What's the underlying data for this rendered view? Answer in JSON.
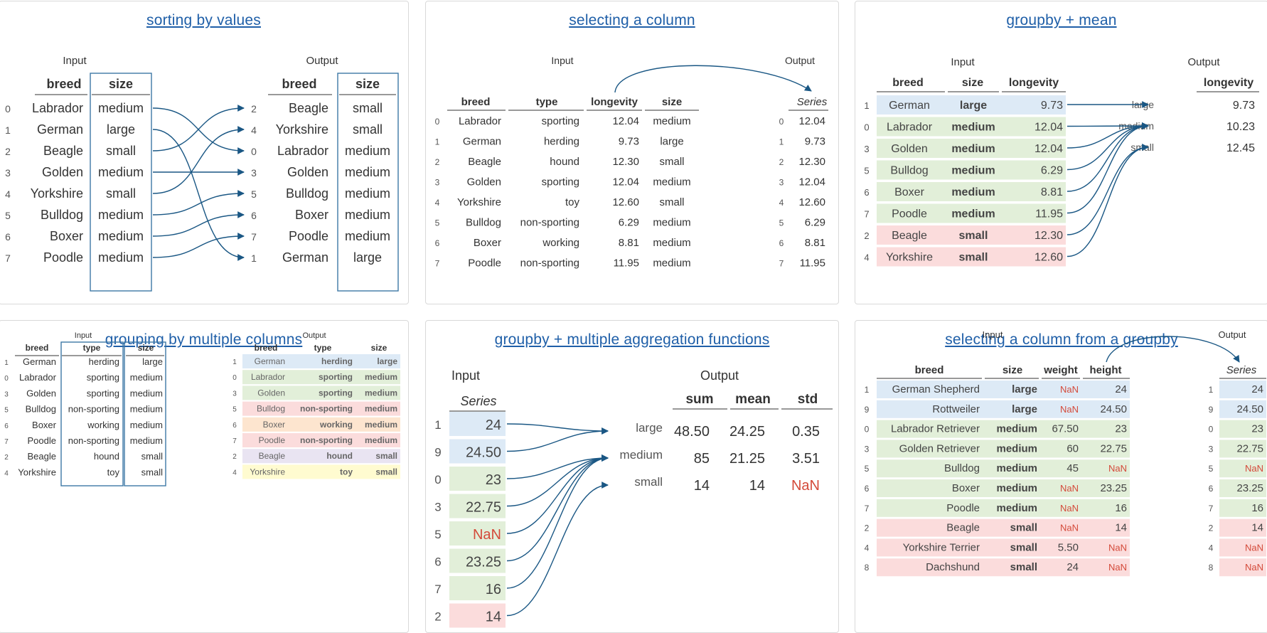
{
  "colors": {
    "arrow": "#1a5784",
    "link": "#1f5fa8",
    "blue": "#ddeaf6",
    "green": "#e2efd9",
    "red": "#fbdcdc",
    "orange": "#fde5cf",
    "purple": "#e9e4f2",
    "yellow": "#fffbd0",
    "nan": "#d44a3a",
    "box": "#3d78a6"
  },
  "panels": {
    "sort": {
      "title": "sorting by values",
      "input_label": "Input",
      "output_label": "Output",
      "columns": [
        "breed",
        "size"
      ],
      "input_rows": [
        {
          "idx": "0",
          "breed": "Labrador",
          "size": "medium"
        },
        {
          "idx": "1",
          "breed": "German",
          "size": "large"
        },
        {
          "idx": "2",
          "breed": "Beagle",
          "size": "small"
        },
        {
          "idx": "3",
          "breed": "Golden",
          "size": "medium"
        },
        {
          "idx": "4",
          "breed": "Yorkshire",
          "size": "small"
        },
        {
          "idx": "5",
          "breed": "Bulldog",
          "size": "medium"
        },
        {
          "idx": "6",
          "breed": "Boxer",
          "size": "medium"
        },
        {
          "idx": "7",
          "breed": "Poodle",
          "size": "medium"
        }
      ],
      "output_rows": [
        {
          "idx": "2",
          "breed": "Beagle",
          "size": "small"
        },
        {
          "idx": "4",
          "breed": "Yorkshire",
          "size": "small"
        },
        {
          "idx": "0",
          "breed": "Labrador",
          "size": "medium"
        },
        {
          "idx": "3",
          "breed": "Golden",
          "size": "medium"
        },
        {
          "idx": "5",
          "breed": "Bulldog",
          "size": "medium"
        },
        {
          "idx": "6",
          "breed": "Boxer",
          "size": "medium"
        },
        {
          "idx": "7",
          "breed": "Poodle",
          "size": "medium"
        },
        {
          "idx": "1",
          "breed": "German",
          "size": "large"
        }
      ]
    },
    "select": {
      "title": "selecting a column",
      "input_label": "Input",
      "output_label": "Output",
      "columns": [
        "breed",
        "type",
        "longevity",
        "size"
      ],
      "series_label": "Series",
      "rows": [
        {
          "idx": "0",
          "breed": "Labrador",
          "type": "sporting",
          "longevity": "12.04",
          "size": "medium"
        },
        {
          "idx": "1",
          "breed": "German",
          "type": "herding",
          "longevity": "9.73",
          "size": "large"
        },
        {
          "idx": "2",
          "breed": "Beagle",
          "type": "hound",
          "longevity": "12.30",
          "size": "small"
        },
        {
          "idx": "3",
          "breed": "Golden",
          "type": "sporting",
          "longevity": "12.04",
          "size": "medium"
        },
        {
          "idx": "4",
          "breed": "Yorkshire",
          "type": "toy",
          "longevity": "12.60",
          "size": "small"
        },
        {
          "idx": "5",
          "breed": "Bulldog",
          "type": "non-sporting",
          "longevity": "6.29",
          "size": "medium"
        },
        {
          "idx": "6",
          "breed": "Boxer",
          "type": "working",
          "longevity": "8.81",
          "size": "medium"
        },
        {
          "idx": "7",
          "breed": "Poodle",
          "type": "non-sporting",
          "longevity": "11.95",
          "size": "medium"
        }
      ]
    },
    "groupmean": {
      "title": "groupby + mean",
      "input_label": "Input",
      "output_label": "Output",
      "columns": [
        "breed",
        "size",
        "longevity"
      ],
      "rows": [
        {
          "idx": "1",
          "breed": "German",
          "size": "large",
          "longevity": "9.73",
          "color": "blue"
        },
        {
          "idx": "0",
          "breed": "Labrador",
          "size": "medium",
          "longevity": "12.04",
          "color": "green"
        },
        {
          "idx": "3",
          "breed": "Golden",
          "size": "medium",
          "longevity": "12.04",
          "color": "green"
        },
        {
          "idx": "5",
          "breed": "Bulldog",
          "size": "medium",
          "longevity": "6.29",
          "color": "green"
        },
        {
          "idx": "6",
          "breed": "Boxer",
          "size": "medium",
          "longevity": "8.81",
          "color": "green"
        },
        {
          "idx": "7",
          "breed": "Poodle",
          "size": "medium",
          "longevity": "11.95",
          "color": "green"
        },
        {
          "idx": "2",
          "breed": "Beagle",
          "size": "small",
          "longevity": "12.30",
          "color": "red"
        },
        {
          "idx": "4",
          "breed": "Yorkshire",
          "size": "small",
          "longevity": "12.60",
          "color": "red"
        }
      ],
      "output_column": "longevity",
      "output_rows": [
        {
          "label": "large",
          "value": "9.73"
        },
        {
          "label": "medium",
          "value": "10.23"
        },
        {
          "label": "small",
          "value": "12.45"
        }
      ]
    },
    "multicol": {
      "title": "grouping by multiple columns",
      "input_label": "Input",
      "output_label": "Output",
      "columns": [
        "breed",
        "type",
        "size"
      ],
      "input_rows": [
        {
          "idx": "1",
          "breed": "German",
          "type": "herding",
          "size": "large"
        },
        {
          "idx": "0",
          "breed": "Labrador",
          "type": "sporting",
          "size": "medium"
        },
        {
          "idx": "3",
          "breed": "Golden",
          "type": "sporting",
          "size": "medium"
        },
        {
          "idx": "5",
          "breed": "Bulldog",
          "type": "non-sporting",
          "size": "medium"
        },
        {
          "idx": "6",
          "breed": "Boxer",
          "type": "working",
          "size": "medium"
        },
        {
          "idx": "7",
          "breed": "Poodle",
          "type": "non-sporting",
          "size": "medium"
        },
        {
          "idx": "2",
          "breed": "Beagle",
          "type": "hound",
          "size": "small"
        },
        {
          "idx": "4",
          "breed": "Yorkshire",
          "type": "toy",
          "size": "small"
        }
      ],
      "output_rows": [
        {
          "idx": "1",
          "breed": "German",
          "type": "herding",
          "size": "large",
          "color": "blue"
        },
        {
          "idx": "0",
          "breed": "Labrador",
          "type": "sporting",
          "size": "medium",
          "color": "green"
        },
        {
          "idx": "3",
          "breed": "Golden",
          "type": "sporting",
          "size": "medium",
          "color": "green"
        },
        {
          "idx": "5",
          "breed": "Bulldog",
          "type": "non-sporting",
          "size": "medium",
          "color": "red"
        },
        {
          "idx": "6",
          "breed": "Boxer",
          "type": "working",
          "size": "medium",
          "color": "orange"
        },
        {
          "idx": "7",
          "breed": "Poodle",
          "type": "non-sporting",
          "size": "medium",
          "color": "red"
        },
        {
          "idx": "2",
          "breed": "Beagle",
          "type": "hound",
          "size": "small",
          "color": "purple"
        },
        {
          "idx": "4",
          "breed": "Yorkshire",
          "type": "toy",
          "size": "small",
          "color": "yellow"
        }
      ]
    },
    "multiagg": {
      "title": "groupby + multiple aggregation functions",
      "input_label": "Input",
      "output_label": "Output",
      "series_label": "Series",
      "input_rows": [
        {
          "idx": "1",
          "value": "24",
          "color": "blue"
        },
        {
          "idx": "9",
          "value": "24.50",
          "color": "blue"
        },
        {
          "idx": "0",
          "value": "23",
          "color": "green"
        },
        {
          "idx": "3",
          "value": "22.75",
          "color": "green"
        },
        {
          "idx": "5",
          "value": "NaN",
          "color": "green"
        },
        {
          "idx": "6",
          "value": "23.25",
          "color": "green"
        },
        {
          "idx": "7",
          "value": "16",
          "color": "green"
        },
        {
          "idx": "2",
          "value": "14",
          "color": "red"
        }
      ],
      "output_columns": [
        "sum",
        "mean",
        "std"
      ],
      "output_rows": [
        {
          "label": "large",
          "sum": "48.50",
          "mean": "24.25",
          "std": "0.35"
        },
        {
          "label": "medium",
          "sum": "85",
          "mean": "21.25",
          "std": "3.51"
        },
        {
          "label": "small",
          "sum": "14",
          "mean": "14",
          "std": "NaN"
        }
      ]
    },
    "colgroup": {
      "title": "selecting a column from a groupby",
      "input_label": "Input",
      "output_label": "Output",
      "columns": [
        "breed",
        "size",
        "weight",
        "height"
      ],
      "series_label": "Series",
      "rows": [
        {
          "idx": "1",
          "breed": "German Shepherd",
          "size": "large",
          "weight": "NaN",
          "height": "24",
          "color": "blue"
        },
        {
          "idx": "9",
          "breed": "Rottweiler",
          "size": "large",
          "weight": "NaN",
          "height": "24.50",
          "color": "blue"
        },
        {
          "idx": "0",
          "breed": "Labrador Retriever",
          "size": "medium",
          "weight": "67.50",
          "height": "23",
          "color": "green"
        },
        {
          "idx": "3",
          "breed": "Golden Retriever",
          "size": "medium",
          "weight": "60",
          "height": "22.75",
          "color": "green"
        },
        {
          "idx": "5",
          "breed": "Bulldog",
          "size": "medium",
          "weight": "45",
          "height": "NaN",
          "color": "green"
        },
        {
          "idx": "6",
          "breed": "Boxer",
          "size": "medium",
          "weight": "NaN",
          "height": "23.25",
          "color": "green"
        },
        {
          "idx": "7",
          "breed": "Poodle",
          "size": "medium",
          "weight": "NaN",
          "height": "16",
          "color": "green"
        },
        {
          "idx": "2",
          "breed": "Beagle",
          "size": "small",
          "weight": "NaN",
          "height": "14",
          "color": "red"
        },
        {
          "idx": "4",
          "breed": "Yorkshire Terrier",
          "size": "small",
          "weight": "5.50",
          "height": "NaN",
          "color": "red"
        },
        {
          "idx": "8",
          "breed": "Dachshund",
          "size": "small",
          "weight": "24",
          "height": "NaN",
          "color": "red"
        }
      ]
    }
  }
}
